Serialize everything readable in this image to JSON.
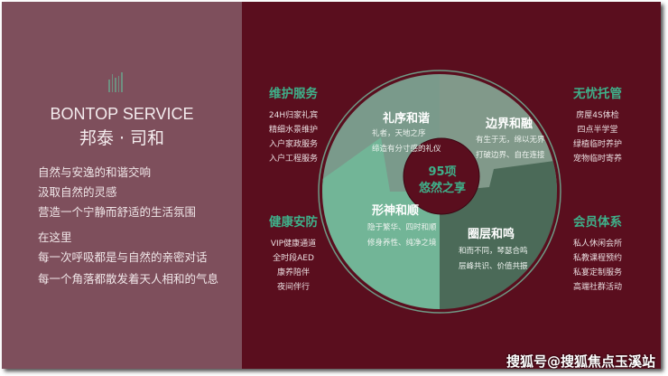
{
  "brand": {
    "en": "BONTOP SERVICE",
    "cn": "邦泰 · 司和"
  },
  "intro": [
    "自然与安逸的和谐交响",
    "汲取自然的灵感",
    "营造一个宁静而舒适的生活氛围",
    "在这里",
    "每一次呼吸都是与自然的亲密对话",
    "每一个角落都散发着天人相和的气息"
  ],
  "sections": [
    {
      "title": "维护服务",
      "items": [
        "24H归家礼宾",
        "精细水景维护",
        "入户家政服务",
        "入户工程服务"
      ]
    },
    {
      "title": "健康安防",
      "items": [
        "VIP健康通道",
        "全时段AED",
        "康养陪伴",
        "夜间伴行"
      ]
    },
    {
      "title": "无忧托管",
      "items": [
        "房屋4S体检",
        "四点半学堂",
        "绿植临时养护",
        "宠物临时寄养"
      ]
    },
    {
      "title": "会员体系",
      "items": [
        "私人休闲会所",
        "私教课程预约",
        "私宴定制服务",
        "高端社群活动"
      ]
    }
  ],
  "wheel": {
    "center": [
      "95项",
      "悠然之享"
    ],
    "quadrants": [
      {
        "title": "礼序和谐",
        "lines": [
          "礼者，天地之序",
          "缔造有分寸感的礼仪"
        ],
        "color": "#7a9a8b"
      },
      {
        "title": "边界和融",
        "lines": [
          "有生于无，绵以无界",
          "打破边界、自在连接"
        ],
        "color": "#81998a"
      },
      {
        "title": "形神和顺",
        "lines": [
          "隐于繁华、四时和顺",
          "修身养性、纯净之境"
        ],
        "color": "#72b597"
      },
      {
        "title": "圈层和鸣",
        "lines": [
          "和而不同，琴瑟合鸣",
          "层峰共识、价值共振"
        ],
        "color": "#4b6a58"
      }
    ]
  },
  "watermark": "搜狐号@搜狐焦点玉溪站"
}
